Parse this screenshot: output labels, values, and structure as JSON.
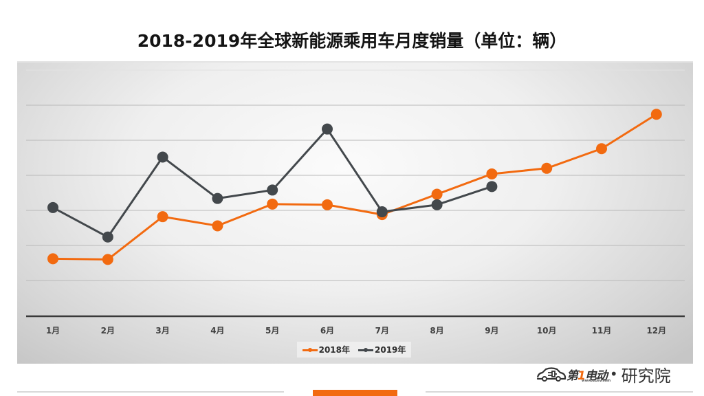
{
  "title": "2018-2019年全球新能源乘用车月度销量（单位：辆）",
  "chart_data": {
    "type": "line",
    "title": "2018-2019年全球新能源乘用车月度销量（单位：辆）",
    "xlabel": "",
    "ylabel": "",
    "categories": [
      "1月",
      "2月",
      "3月",
      "4月",
      "5月",
      "6月",
      "7月",
      "8月",
      "9月",
      "10月",
      "11月",
      "12月"
    ],
    "series": [
      {
        "name": "2018年",
        "color": "#F26A10",
        "values": [
          81000,
          80000,
          141000,
          128000,
          159000,
          158000,
          144000,
          173000,
          202000,
          210000,
          238000,
          287000
        ]
      },
      {
        "name": "2019年",
        "color": "#43484C",
        "values": [
          154000,
          112000,
          226000,
          167000,
          179000,
          266000,
          148000,
          158000,
          184000,
          null,
          null,
          null
        ]
      }
    ],
    "ylim": [
      0,
      350000
    ],
    "y_gridline_step": 50000,
    "y_tick_labels_visible": false,
    "grid": true,
    "legend_position": "bottom",
    "markers": "circle"
  },
  "legend": [
    {
      "label": "2018年",
      "color": "#F26A10"
    },
    {
      "label": "2019年",
      "color": "#43484C"
    }
  ],
  "logo": {
    "brand_prefix": "第",
    "brand_one": "1",
    "brand_suffix": "电动",
    "url": "www.d1ev.com",
    "separator": "•",
    "institute": "研究院"
  }
}
